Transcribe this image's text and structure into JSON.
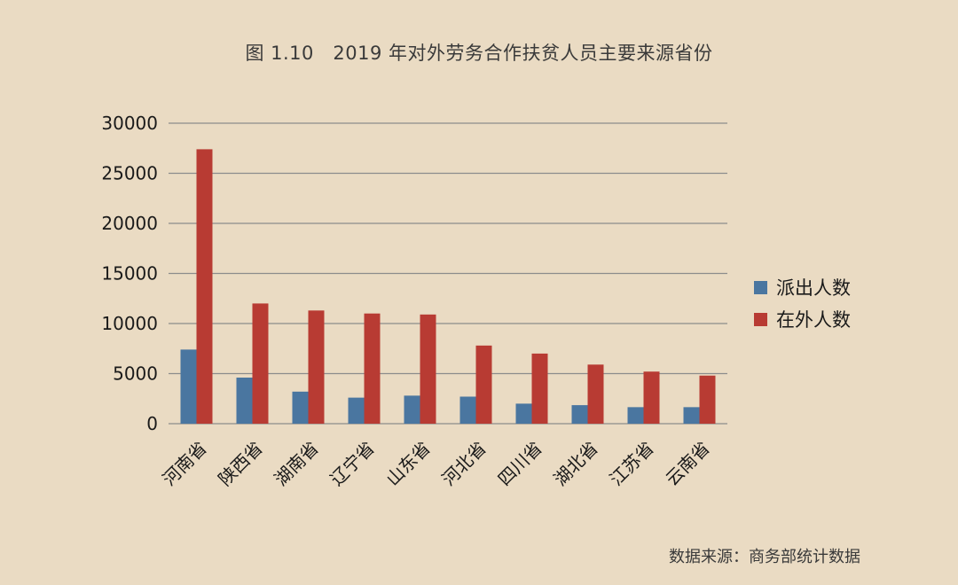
{
  "title": "图 1.10　2019 年对外劳务合作扶贫人员主要来源省份",
  "source_note": "数据来源：商务部统计数据",
  "colors": {
    "background": "#eadbc3",
    "series_1": "#4a76a0",
    "series_2": "#b83b33",
    "gridline": "#8c8c8c"
  },
  "chart_data": {
    "type": "bar",
    "title": "图 1.10　2019 年对外劳务合作扶贫人员主要来源省份",
    "xlabel": "",
    "ylabel": "",
    "ylim": [
      0,
      30000
    ],
    "yticks": [
      "0",
      "5000",
      "10000",
      "15000",
      "20000",
      "25000",
      "30000"
    ],
    "grid": true,
    "legend_position": "right",
    "categories": [
      "河南省",
      "陕西省",
      "湖南省",
      "辽宁省",
      "山东省",
      "河北省",
      "四川省",
      "湖北省",
      "江苏省",
      "云南省"
    ],
    "series": [
      {
        "name": "派出人数",
        "color": "#4a76a0",
        "values": [
          7400,
          4600,
          3200,
          2600,
          2800,
          2700,
          2000,
          1850,
          1650,
          1650
        ]
      },
      {
        "name": "在外人数",
        "color": "#b83b33",
        "values": [
          27400,
          12000,
          11300,
          11000,
          10900,
          7800,
          7000,
          5900,
          5200,
          4800
        ]
      }
    ]
  }
}
